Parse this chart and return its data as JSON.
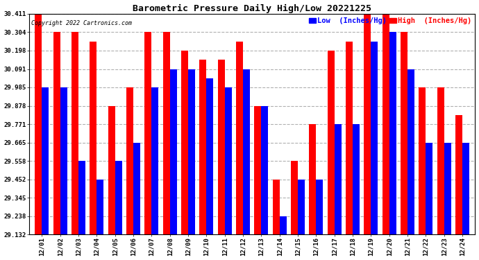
{
  "title": "Barometric Pressure Daily High/Low 20221225",
  "copyright": "Copyright 2022 Cartronics.com",
  "legend_low": "Low  (Inches/Hg)",
  "legend_high": "High  (Inches/Hg)",
  "dates": [
    "12/01",
    "12/02",
    "12/03",
    "12/04",
    "12/05",
    "12/06",
    "12/07",
    "12/08",
    "12/09",
    "12/10",
    "12/11",
    "12/12",
    "12/13",
    "12/14",
    "12/15",
    "12/16",
    "12/17",
    "12/18",
    "12/19",
    "12/20",
    "12/21",
    "12/22",
    "12/23",
    "12/24"
  ],
  "high_values": [
    30.411,
    30.304,
    30.304,
    30.251,
    29.878,
    29.985,
    30.304,
    30.304,
    30.198,
    30.144,
    30.144,
    30.251,
    29.878,
    29.452,
    29.558,
    29.771,
    30.198,
    30.251,
    30.411,
    30.411,
    30.304,
    29.985,
    29.985,
    29.825
  ],
  "low_values": [
    29.985,
    29.985,
    29.558,
    29.452,
    29.558,
    29.665,
    29.985,
    30.091,
    30.091,
    30.038,
    29.985,
    30.091,
    29.878,
    29.238,
    29.452,
    29.452,
    29.771,
    29.771,
    30.251,
    30.304,
    30.091,
    29.665,
    29.665,
    29.665
  ],
  "ylim_min": 29.132,
  "ylim_max": 30.411,
  "yticks": [
    29.132,
    29.238,
    29.345,
    29.452,
    29.558,
    29.665,
    29.771,
    29.878,
    29.985,
    30.091,
    30.198,
    30.304,
    30.411
  ],
  "color_high": "#ff0000",
  "color_low": "#0000ff",
  "color_bg": "#ffffff",
  "color_grid": "#b0b0b0",
  "bar_width": 0.38,
  "title_fontsize": 9.5,
  "tick_fontsize": 6.5,
  "legend_fontsize": 7.5,
  "copyright_fontsize": 6
}
